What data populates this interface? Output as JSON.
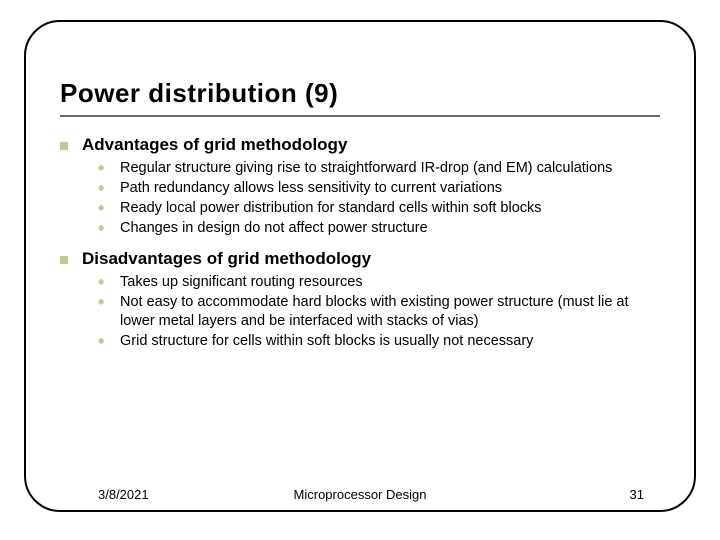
{
  "title": "Power distribution (9)",
  "sections": [
    {
      "heading": "Advantages of grid methodology",
      "items": [
        "Regular structure giving rise to straightforward IR-drop (and EM) calculations",
        "Path redundancy allows less sensitivity to current variations",
        "Ready local power distribution for standard cells within soft blocks",
        "Changes in design do not affect power structure"
      ]
    },
    {
      "heading": "Disadvantages of grid methodology",
      "items": [
        "Takes up significant routing resources",
        "Not easy to accommodate hard blocks with existing power structure (must lie at lower metal layers and be interfaced with stacks of vias)",
        "Grid structure for cells within soft blocks is usually not necessary"
      ]
    }
  ],
  "footer": {
    "date": "3/8/2021",
    "course": "Microprocessor Design",
    "page": "31"
  },
  "colors": {
    "bullet": "#b6cf8f",
    "rule": "#6a6a6a",
    "frame": "#000000"
  }
}
